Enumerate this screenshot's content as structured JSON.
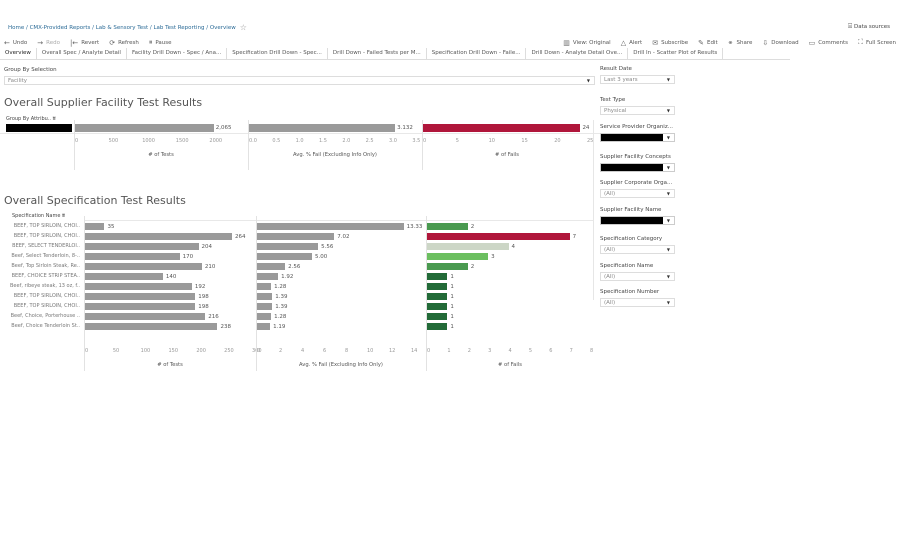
{
  "breadcrumb": "Home / CMX-Provided Reports / Lab & Sensory Test / Lab Test Reporting / Overview",
  "data_sources": "Data sources",
  "toolbar_left": [
    {
      "icon": "undo-icon",
      "glyph": "←",
      "label": "Undo"
    },
    {
      "icon": "redo-icon",
      "glyph": "→",
      "label": "Redo"
    },
    {
      "icon": "revert-icon",
      "glyph": "|←",
      "label": "Revert"
    },
    {
      "icon": "refresh-icon",
      "glyph": "⟳",
      "label": "Refresh"
    },
    {
      "icon": "pause-icon",
      "glyph": "⏸",
      "label": "Pause"
    }
  ],
  "toolbar_right": [
    {
      "icon": "view-original-icon",
      "glyph": "▥",
      "label": "View: Original"
    },
    {
      "icon": "alert-icon",
      "glyph": "△",
      "label": "Alert"
    },
    {
      "icon": "subscribe-icon",
      "glyph": "✉",
      "label": "Subscribe"
    },
    {
      "icon": "edit-icon",
      "glyph": "✎",
      "label": "Edit"
    },
    {
      "icon": "share-icon",
      "glyph": "⚭",
      "label": "Share"
    },
    {
      "icon": "download-icon",
      "glyph": "⇩",
      "label": "Download"
    },
    {
      "icon": "comments-icon",
      "glyph": "▭",
      "label": "Comments"
    },
    {
      "icon": "full-screen-icon",
      "glyph": "⛶",
      "label": "Full Screen"
    }
  ],
  "tabs": [
    "Overview",
    "Overall Spec / Analyte Detail",
    "Facility Drill Down - Spec / Ana...",
    "Specification Drill Down - Spec...",
    "Drill Down - Failed Tests per M...",
    "Specification Drill Down - Faile...",
    "Drill Down - Analyte Detail Ove...",
    "Drill In - Scatter Plot of Results"
  ],
  "group_by": {
    "label": "Group By Selection",
    "value": "Facility"
  },
  "filters": [
    {
      "label": "Result Date",
      "value": "Last 3 years",
      "redacted": false
    },
    {
      "label": "Test Type",
      "value": "Physical",
      "redacted": false
    },
    {
      "label": "Service Provider Organiz...",
      "value": "",
      "redacted": true
    },
    {
      "label": "Supplier Facility Concepts",
      "value": "",
      "redacted": true
    },
    {
      "label": "Supplier Corporate Orga...",
      "value": "(All)",
      "redacted": false
    },
    {
      "label": "Supplier Facility Name",
      "value": "",
      "redacted": true
    },
    {
      "label": "Specification Category",
      "value": "(All)",
      "redacted": false
    },
    {
      "label": "Specification Name",
      "value": "(All)",
      "redacted": false
    },
    {
      "label": "Specification Number",
      "value": "(All)",
      "redacted": false
    }
  ],
  "section1": {
    "title": "Overall Supplier Facility Test Results",
    "row_header": "Group By Attribu..",
    "tests_label": "2,065",
    "avg_label": "3.132",
    "fails_label": "24"
  },
  "section2": {
    "title": "Overall Specification Test Results",
    "row_header": "Specification Name"
  },
  "colors": {
    "bar_gray": "#9a9a9a",
    "fail_red": "#b0163b",
    "green_mid": "#4a9a50",
    "green_light": "#6cbf60",
    "green_pale": "#ccd6c6",
    "green_dark": "#236b38"
  },
  "chart_data": [
    {
      "type": "bar",
      "title": "Overall Supplier Facility Test Results",
      "categories": [
        "[redacted]"
      ],
      "series": [
        {
          "name": "# of Tests",
          "values": [
            2065
          ],
          "xlim": [
            0,
            2500
          ],
          "ticks": [
            "0",
            "500",
            "1000",
            "1500",
            "2000"
          ]
        },
        {
          "name": "Avg. % Fail (Excluding Info Only)",
          "values": [
            3.132
          ],
          "xlim": [
            0,
            3.6
          ],
          "ticks": [
            "0.0",
            "0.5",
            "1.0",
            "1.5",
            "2.0",
            "2.5",
            "3.0",
            "3.5"
          ]
        },
        {
          "name": "# of Fails",
          "values": [
            24
          ],
          "xlim": [
            0,
            25
          ],
          "ticks": [
            "0",
            "5",
            "10",
            "15",
            "20",
            "25"
          ]
        }
      ]
    },
    {
      "type": "bar",
      "title": "Overall Specification Test Results",
      "categories": [
        "BEEF, TOP SIRLOIN, CHOI..",
        "BEEF, TOP SIRLOIN, CHOI..",
        "BEEF, SELECT TENDERLOI..",
        "Beef, Select Tenderloin, 8-..",
        "Beef, Top Sirloin Steak, Re..",
        "BEEF, CHOICE STRIP STEA..",
        "Beef, ribeye steak, 13 oz, f..",
        "BEEF, TOP SIRLOIN, CHOI..",
        "BEEF, TOP SIRLOIN, CHOI..",
        "Beef, Choice, Porterhouse ..",
        "Beef, Choice Tenderloin St.."
      ],
      "series": [
        {
          "name": "# of Tests",
          "values": [
            35,
            264,
            204,
            170,
            210,
            140,
            192,
            198,
            198,
            216,
            238
          ],
          "labels": [
            "35",
            "264",
            "204",
            "170",
            "210",
            "140",
            "192",
            "198",
            "198",
            "216",
            "238"
          ],
          "xlim": [
            0,
            300
          ],
          "ticks": [
            "0",
            "50",
            "100",
            "150",
            "200",
            "250",
            "300"
          ]
        },
        {
          "name": "Avg. % Fail (Excluding Info Only)",
          "values": [
            13.33,
            7.02,
            5.56,
            5.0,
            2.56,
            1.92,
            1.28,
            1.39,
            1.39,
            1.28,
            1.19
          ],
          "labels": [
            "13.33",
            "7.02",
            "5.56",
            "5.00",
            "2.56",
            "1.92",
            "1.28",
            "1.39",
            "1.39",
            "1.28",
            "1.19"
          ],
          "xlim": [
            0,
            15
          ],
          "ticks": [
            "0",
            "2",
            "4",
            "6",
            "8",
            "10",
            "12",
            "14"
          ]
        },
        {
          "name": "# of Fails",
          "values": [
            2,
            7,
            4,
            3,
            2,
            1,
            1,
            1,
            1,
            1,
            1
          ],
          "labels": [
            "2",
            "7",
            "4",
            "3",
            "2",
            "1",
            "1",
            "1",
            "1",
            "1",
            "1"
          ],
          "xlim": [
            0,
            8
          ],
          "ticks": [
            "0",
            "1",
            "2",
            "3",
            "4",
            "5",
            "6",
            "7",
            "8"
          ],
          "bar_colors": [
            "#4a9a50",
            "#b0163b",
            "#ccd6c6",
            "#6cbf60",
            "#4a9a50",
            "#236b38",
            "#236b38",
            "#236b38",
            "#236b38",
            "#236b38",
            "#236b38"
          ]
        }
      ]
    }
  ]
}
